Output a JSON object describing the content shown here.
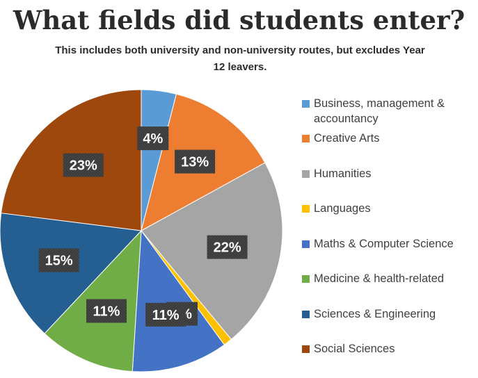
{
  "chart_data": {
    "type": "pie",
    "title": "What fields did students enter?",
    "subtitle": "This includes both university and non-university routes, but excludes Year 12 leavers.",
    "legend_position": "right",
    "slices": [
      {
        "label": "Business, management & accountancy",
        "value": 4,
        "display": "4%",
        "color": "#5b9bd5"
      },
      {
        "label": "Creative Arts",
        "value": 13,
        "display": "13%",
        "color": "#ed7d31"
      },
      {
        "label": "Humanities",
        "value": 22,
        "display": "22%",
        "color": "#a5a5a5"
      },
      {
        "label": "Languages",
        "value": 1,
        "display": "1%",
        "color": "#ffc000"
      },
      {
        "label": "Maths & Computer Science",
        "value": 11,
        "display": "11%",
        "color": "#4472c4"
      },
      {
        "label": "Medicine & health-related",
        "value": 11,
        "display": "11%",
        "color": "#70ad47"
      },
      {
        "label": "Sciences & Engineering",
        "value": 15,
        "display": "15%",
        "color": "#255e91"
      },
      {
        "label": "Social Sciences",
        "value": 23,
        "display": "23%",
        "color": "#9e480e"
      }
    ]
  }
}
